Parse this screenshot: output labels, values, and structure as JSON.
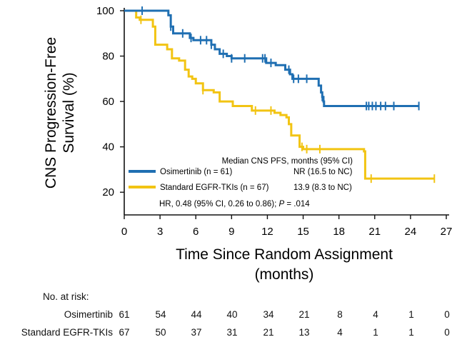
{
  "chart_data": {
    "type": "line",
    "ylabel": "CNS Progression-Free\nSurvival (%)",
    "xlabel": "Time Since Random Assignment\n(months)",
    "x_ticks": [
      0,
      3,
      6,
      9,
      12,
      15,
      18,
      21,
      24,
      27
    ],
    "y_ticks": [
      20,
      40,
      60,
      80,
      100
    ],
    "xlim": [
      0,
      27
    ],
    "ylim": [
      10,
      100
    ],
    "series": [
      {
        "name": "Osimertinib (n = 61)",
        "color": "#1f6fb2",
        "median_text": "NR (16.5 to NC)",
        "steps": [
          [
            0,
            100
          ],
          [
            3.7,
            98
          ],
          [
            3.9,
            93
          ],
          [
            4.1,
            90
          ],
          [
            5.5,
            88
          ],
          [
            5.8,
            87
          ],
          [
            7.3,
            85
          ],
          [
            7.6,
            83
          ],
          [
            8,
            81
          ],
          [
            8.6,
            80
          ],
          [
            9,
            79
          ],
          [
            11.9,
            77
          ],
          [
            12.7,
            76
          ],
          [
            13.5,
            74
          ],
          [
            13.9,
            72
          ],
          [
            14.1,
            70
          ],
          [
            16.3,
            67
          ],
          [
            16.5,
            64
          ],
          [
            16.6,
            62
          ],
          [
            16.7,
            60
          ],
          [
            16.75,
            58
          ],
          [
            24.7,
            58
          ]
        ],
        "censor_x": [
          1.5,
          3.9,
          4.9,
          5.6,
          6.4,
          6.9,
          7.3,
          8.3,
          9.0,
          10.1,
          11.6,
          11.8,
          12.3,
          13.8,
          14.2,
          14.6,
          15.3,
          16.6,
          20.3,
          20.5,
          20.8,
          21.1,
          21.5,
          21.9,
          22.6,
          24.7
        ]
      },
      {
        "name": "Standard EGFR-TKIs (n = 67)",
        "color": "#f2c413",
        "median_text": "13.9 (8.3 to NC)",
        "steps": [
          [
            0,
            100
          ],
          [
            1.0,
            97
          ],
          [
            1.3,
            96
          ],
          [
            2.4,
            93
          ],
          [
            2.6,
            85
          ],
          [
            3.6,
            83
          ],
          [
            4.0,
            79
          ],
          [
            4.6,
            78
          ],
          [
            5.1,
            74
          ],
          [
            5.4,
            71
          ],
          [
            5.7,
            70
          ],
          [
            6.0,
            68
          ],
          [
            6.6,
            65
          ],
          [
            7.5,
            64
          ],
          [
            8.0,
            60
          ],
          [
            9.1,
            58
          ],
          [
            10.7,
            56
          ],
          [
            12.6,
            55
          ],
          [
            13.1,
            54
          ],
          [
            13.6,
            53
          ],
          [
            13.8,
            50
          ],
          [
            14.0,
            45
          ],
          [
            14.7,
            40
          ],
          [
            15.0,
            39
          ],
          [
            20.1,
            38
          ],
          [
            20.2,
            26
          ],
          [
            26.0,
            26
          ]
        ],
        "censor_x": [
          1.4,
          6.6,
          11.0,
          12.3,
          14.9,
          15.3,
          16.4,
          20.7,
          26.0
        ]
      }
    ]
  },
  "legend": {
    "header": "Median CNS PFS, months (95% CI)",
    "hr_prefix": "HR, 0.48 (95% CI, 0.26 to 0.86);",
    "hr_p_label": "P",
    "hr_p_value": "= .014"
  },
  "risk_table": {
    "title": "No. at risk:",
    "rows": [
      {
        "label": "Osimertinib",
        "values": [
          "61",
          "54",
          "44",
          "40",
          "34",
          "21",
          "8",
          "4",
          "1",
          "0"
        ]
      },
      {
        "label": "Standard EGFR-TKIs",
        "values": [
          "67",
          "50",
          "37",
          "31",
          "21",
          "13",
          "4",
          "1",
          "1",
          "0"
        ]
      }
    ]
  }
}
